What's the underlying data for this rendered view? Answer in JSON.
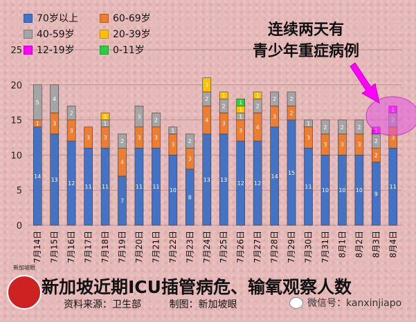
{
  "chart_data": {
    "type": "bar",
    "stacked": true,
    "title": "新加坡近期ICU插管病危、输氧观察人数",
    "categories": [
      "7月14日",
      "7月15日",
      "7月16日",
      "7月17日",
      "7月18日",
      "7月19日",
      "7月20日",
      "7月21日",
      "7月22日",
      "7月23日",
      "7月24日",
      "7月25日",
      "7月26日",
      "7月27日",
      "7月28日",
      "7月29日",
      "7月30日",
      "7月31日",
      "8月1日",
      "8月2日",
      "8月3日",
      "8月4日"
    ],
    "ylim": [
      0,
      25
    ],
    "yticks": [
      0,
      5,
      10,
      15,
      20,
      25
    ],
    "grid": true,
    "legend_position": "top-left",
    "series": [
      {
        "name": "70岁以上",
        "color": "#4472c4",
        "values": [
          14,
          13,
          12,
          11,
          11,
          7,
          11,
          11,
          10,
          8,
          13,
          13,
          12,
          12,
          14,
          15,
          11,
          10,
          10,
          10,
          9,
          11
        ]
      },
      {
        "name": "60-69岁",
        "color": "#ed7d31",
        "values": [
          1,
          3,
          3,
          3,
          3,
          4,
          3,
          3,
          3,
          3,
          4,
          3,
          3,
          4,
          3,
          2,
          3,
          3,
          3,
          3,
          2,
          3
        ]
      },
      {
        "name": "40-59岁",
        "color": "#a5a5a5",
        "values": [
          5,
          4,
          2,
          0,
          1,
          2,
          3,
          2,
          1,
          2,
          2,
          2,
          1,
          2,
          2,
          2,
          1,
          2,
          2,
          2,
          2,
          2
        ]
      },
      {
        "name": "20-39岁",
        "color": "#ffc000",
        "values": [
          0,
          0,
          0,
          0,
          1,
          0,
          0,
          0,
          0,
          0,
          2,
          1,
          1,
          1,
          0,
          0,
          0,
          0,
          0,
          0,
          0,
          0
        ]
      },
      {
        "name": "12-19岁",
        "color": "#ff00ff",
        "values": [
          0,
          0,
          0,
          0,
          0,
          0,
          0,
          0,
          0,
          0,
          0,
          0,
          0,
          0,
          0,
          0,
          0,
          0,
          0,
          0,
          1,
          1
        ]
      },
      {
        "name": "0-11岁",
        "color": "#2ecc40",
        "values": [
          0,
          0,
          0,
          0,
          0,
          0,
          0,
          0,
          0,
          0,
          0,
          0,
          1,
          0,
          0,
          0,
          0,
          0,
          0,
          0,
          0,
          0
        ]
      }
    ]
  },
  "annotation": {
    "line1": "连续两天有",
    "line2": "青少年重症病例"
  },
  "footer": {
    "source": "资料来源：卫生部",
    "made_by": "制图：新加坡眼",
    "wechat": "微信号：kanxinjiapo"
  },
  "logo": {
    "label": "新加坡眼"
  }
}
